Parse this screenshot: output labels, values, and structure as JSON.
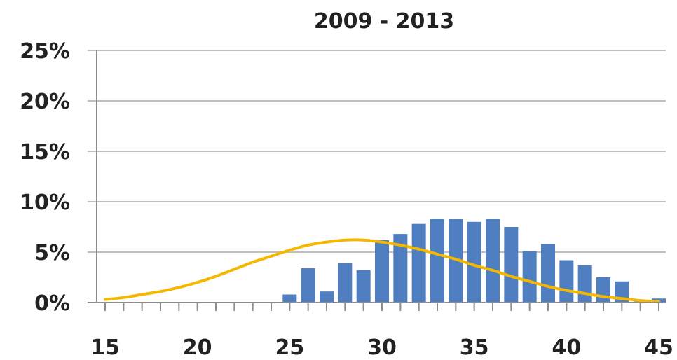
{
  "chart_data": {
    "type": "bar",
    "title": "2009 - 2013",
    "xlabel": "",
    "ylabel": "",
    "xlim": [
      15,
      45
    ],
    "ylim": [
      0,
      25
    ],
    "x_ticks": [
      15,
      20,
      25,
      30,
      35,
      40,
      45
    ],
    "y_ticks": [
      0,
      5,
      10,
      15,
      20,
      25
    ],
    "y_tick_labels": [
      "0%",
      "5%",
      "10%",
      "15%",
      "20%",
      "25%"
    ],
    "grid": true,
    "legend": "none",
    "colors": {
      "bars": "#4f7fc1",
      "curve": "#f5b800"
    },
    "series": [
      {
        "type": "bar",
        "x": [
          25,
          26,
          27,
          28,
          29,
          30,
          31,
          32,
          33,
          34,
          35,
          36,
          37,
          38,
          39,
          40,
          41,
          42,
          43,
          44,
          45
        ],
        "values": [
          0.8,
          3.4,
          1.1,
          3.9,
          3.2,
          6.2,
          6.8,
          7.8,
          8.3,
          8.3,
          8.0,
          8.3,
          7.5,
          5.1,
          5.8,
          4.2,
          3.7,
          2.5,
          2.1,
          0.1,
          0.4
        ]
      },
      {
        "type": "line",
        "x": [
          15,
          16,
          17,
          18,
          19,
          20,
          21,
          22,
          23,
          24,
          25,
          26,
          27,
          28,
          29,
          30,
          31,
          32,
          33,
          34,
          35,
          36,
          37,
          38,
          39,
          40,
          41,
          42,
          43,
          44,
          45
        ],
        "values": [
          0.3,
          0.5,
          0.8,
          1.1,
          1.5,
          2.0,
          2.6,
          3.3,
          4.0,
          4.6,
          5.2,
          5.7,
          6.0,
          6.2,
          6.2,
          6.0,
          5.7,
          5.3,
          4.8,
          4.3,
          3.7,
          3.2,
          2.6,
          2.1,
          1.6,
          1.2,
          0.9,
          0.6,
          0.4,
          0.2,
          0.1
        ]
      }
    ]
  }
}
